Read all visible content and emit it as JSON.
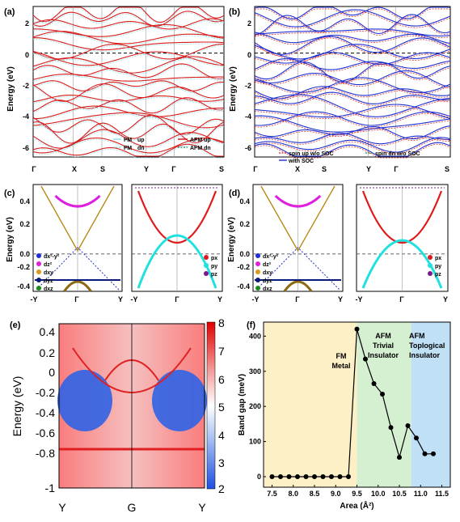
{
  "panels": {
    "a": {
      "label": "(a)",
      "ylabel": "Energy (eV)",
      "yticks": [
        "2",
        "0",
        "-2",
        "-4",
        "-6"
      ],
      "xticks": [
        "Γ",
        "X",
        "S",
        "Y",
        "Γ",
        "S"
      ],
      "legend": {
        "fm_up": "FM",
        "fm_up_tag": "up",
        "fm_dn": "FM",
        "fm_dn_tag": "dn",
        "afm_up": "AFM up",
        "afm_dn": "AFM dn"
      }
    },
    "b": {
      "label": "(b)",
      "ylabel": "Energy (eV)",
      "yticks": [
        "2",
        "0",
        "-2",
        "-4",
        "-6"
      ],
      "xticks": [
        "Γ",
        "X",
        "S",
        "Y",
        "Γ",
        "S"
      ],
      "legend": {
        "up_wo": "spin up w/o SOC",
        "dn_wo": "spin dn w/o SOC",
        "with": "with SOC"
      }
    },
    "c": {
      "label": "(c)",
      "ylabel": "Energy (eV)",
      "yticks": [
        "0.4",
        "0.2",
        "0.0",
        "-0.2",
        "-0.4"
      ],
      "xticks_left": [
        "-Y",
        "Γ",
        "Y"
      ],
      "xticks_right": [
        "-Y",
        "Γ",
        "Y"
      ],
      "orb_d": [
        "dx²-y²",
        "dz²",
        "dxy",
        "dyz",
        "dxz"
      ],
      "orb_p": [
        "px",
        "py",
        "pz"
      ]
    },
    "d": {
      "label": "(d)",
      "ylabel": "Energy (eV)",
      "yticks": [
        "0.4",
        "0.2",
        "0.0",
        "-0.2",
        "-0.4"
      ],
      "xticks_left": [
        "-Y",
        "Γ",
        "Y"
      ],
      "xticks_right": [
        "-Y",
        "Γ",
        "Y"
      ],
      "orb_d": [
        "dx²-y²",
        "dz²",
        "dxy",
        "dyz",
        "dxz"
      ],
      "orb_p": [
        "px",
        "py",
        "pz"
      ]
    },
    "e": {
      "label": "(e)",
      "ylabel": "Energy (eV)",
      "yticks": [
        "0.4",
        "0.2",
        "0",
        "-0.2",
        "-0.4",
        "-0.6",
        "-0.8",
        "-1"
      ],
      "xticks": [
        "Y",
        "G",
        "Y"
      ],
      "colorbar_ticks": [
        "8",
        "7",
        "6",
        "5",
        "4",
        "3",
        "2"
      ]
    },
    "f": {
      "label": "(f)",
      "regions": {
        "fm": "FM",
        "fm2": "Metal",
        "afm1": "AFM",
        "afm1b": "Trivial",
        "afm1c": "Insulator",
        "afm2": "AFM",
        "afm2b": "Toplogical",
        "afm2c": "Insulator"
      },
      "colors": {
        "fm": "#fdefc6",
        "trivial": "#d5f0d1",
        "topo": "#bfe0f5"
      }
    }
  },
  "chart_data": [
    {
      "type": "line",
      "panel": "f",
      "xlabel": "Area (Å²)",
      "ylabel": "Band gap (meV)",
      "xlim": [
        7.3,
        11.7
      ],
      "ylim": [
        -30,
        440
      ],
      "xticks": [
        7.5,
        8.0,
        8.5,
        9.0,
        9.5,
        10.0,
        10.5,
        11.0,
        11.5
      ],
      "yticks": [
        0,
        100,
        200,
        300,
        400
      ],
      "regions_x": [
        [
          7.3,
          9.5
        ],
        [
          9.5,
          10.78
        ],
        [
          10.78,
          11.7
        ]
      ],
      "x": [
        7.5,
        7.7,
        7.9,
        8.1,
        8.3,
        8.5,
        8.7,
        8.9,
        9.1,
        9.3,
        9.5,
        9.7,
        9.9,
        10.1,
        10.3,
        10.5,
        10.7,
        10.9,
        11.1,
        11.3
      ],
      "y": [
        0,
        0,
        0,
        0,
        0,
        0,
        0,
        0,
        0,
        0,
        420,
        335,
        265,
        235,
        140,
        55,
        145,
        110,
        65,
        65
      ]
    }
  ]
}
